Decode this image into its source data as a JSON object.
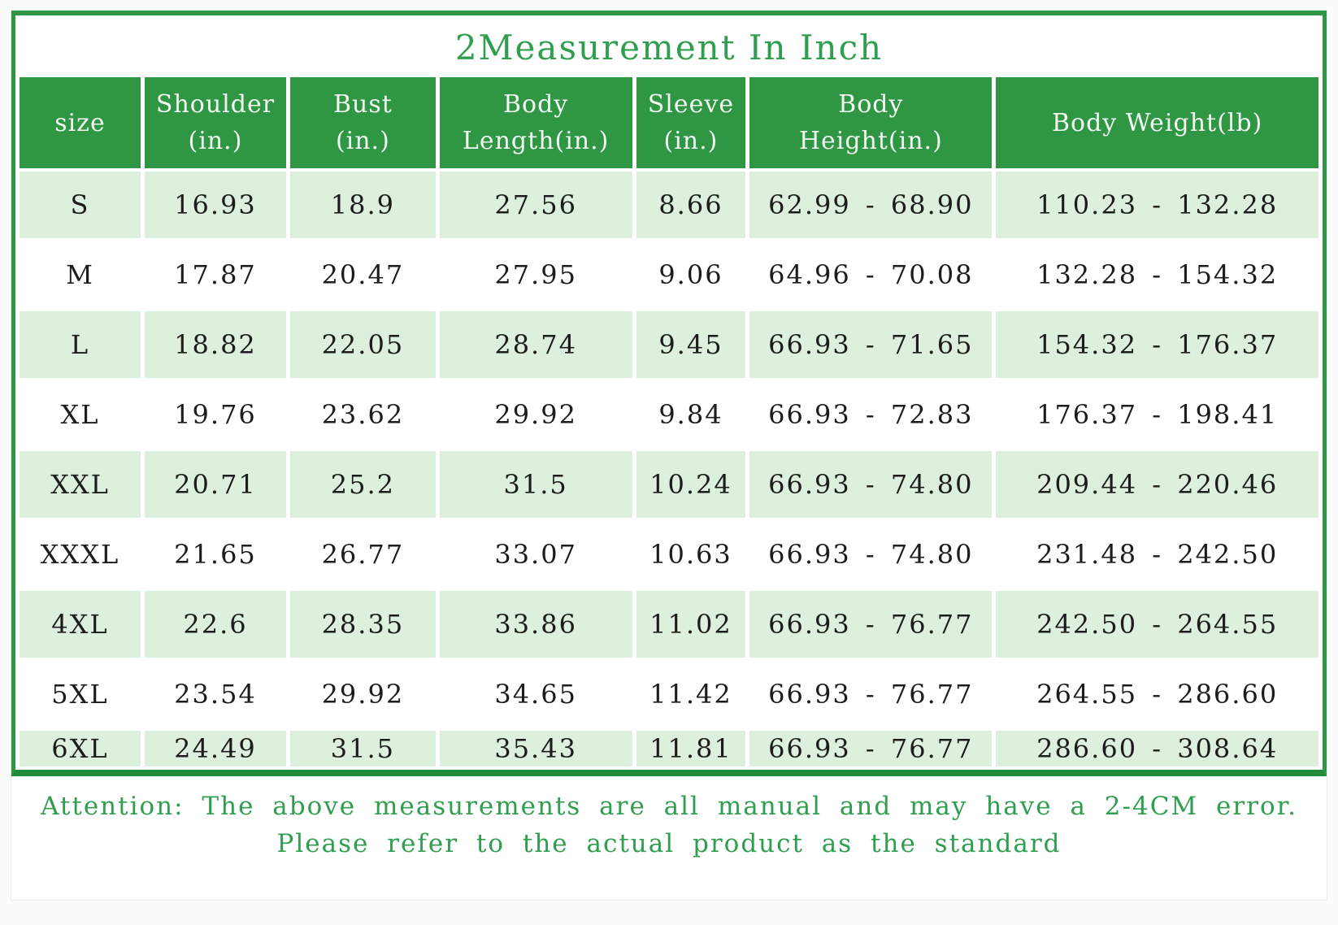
{
  "title": "2Measurement In Inch",
  "chart_data": {
    "type": "table",
    "title": "2Measurement In Inch",
    "columns": [
      "size",
      "Shoulder (in.)",
      "Bust (in.)",
      "Body Length(in.)",
      "Sleeve (in.)",
      "Body Height(in.)",
      "Body Weight(lb)"
    ],
    "column_header_lines": [
      [
        "size"
      ],
      [
        "Shoulder",
        "(in.)"
      ],
      [
        "Bust",
        "(in.)"
      ],
      [
        "Body",
        "Length(in.)"
      ],
      [
        "Sleeve",
        "(in.)"
      ],
      [
        "Body",
        "Height(in.)"
      ],
      [
        "Body Weight(lb)"
      ]
    ],
    "rows": [
      [
        "S",
        "16.93",
        "18.9",
        "27.56",
        "8.66",
        "62.99 - 68.90",
        "110.23 - 132.28"
      ],
      [
        "M",
        "17.87",
        "20.47",
        "27.95",
        "9.06",
        "64.96 - 70.08",
        "132.28 - 154.32"
      ],
      [
        "L",
        "18.82",
        "22.05",
        "28.74",
        "9.45",
        "66.93 - 71.65",
        "154.32 - 176.37"
      ],
      [
        "XL",
        "19.76",
        "23.62",
        "29.92",
        "9.84",
        "66.93 - 72.83",
        "176.37 - 198.41"
      ],
      [
        "XXL",
        "20.71",
        "25.2",
        "31.5",
        "10.24",
        "66.93 - 74.80",
        "209.44 - 220.46"
      ],
      [
        "XXXL",
        "21.65",
        "26.77",
        "33.07",
        "10.63",
        "66.93 - 74.80",
        "231.48 - 242.50"
      ],
      [
        "4XL",
        "22.6",
        "28.35",
        "33.86",
        "11.02",
        "66.93 - 76.77",
        "242.50 - 264.55"
      ],
      [
        "5XL",
        "23.54",
        "29.92",
        "34.65",
        "11.42",
        "66.93 - 76.77",
        "264.55 - 286.60"
      ],
      [
        "6XL",
        "24.49",
        "31.5",
        "35.43",
        "11.81",
        "66.93 - 76.77",
        "286.60 - 308.64"
      ]
    ]
  },
  "note": {
    "line1": "Attention: The above measurements are all manual and may have a 2-4CM error.",
    "line2": "Please refer to the actual product as the standard"
  },
  "colors": {
    "header_bg": "#2f9644",
    "row_stripe_bg": "#ddefdd",
    "frame_green": "#2f9644",
    "frame_bottom_green": "#1f8c3b",
    "title_text": "#2f9e4f",
    "note_text": "#2f9e4f",
    "header_text": "#f2faf3",
    "data_text": "#1c1c1c"
  }
}
